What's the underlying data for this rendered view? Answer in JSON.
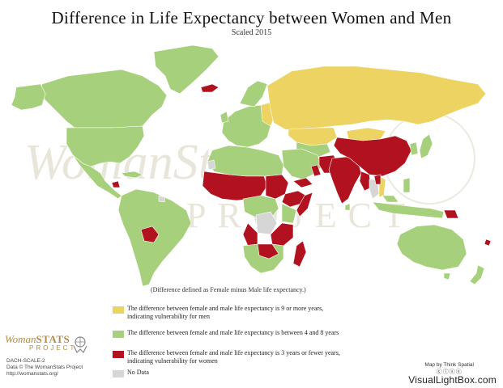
{
  "title": "Difference in Life Expectancy between Women and Men",
  "subtitle": "Scaled 2015",
  "note": "(Difference defined as Female minus Male life expectancy.)",
  "colors": {
    "high": "#ecd362",
    "mid": "#a6d07b",
    "low": "#b2121f",
    "nodata": "#d6d6d6",
    "ocean": "#ffffff",
    "border": "#ffffff"
  },
  "legend": [
    {
      "key": "high",
      "line1": "The difference between female and male life expectancy is 9 or more years,",
      "line2": "indicating vulnerability for men"
    },
    {
      "key": "mid",
      "line1": "The difference between female and male life expectancy is between 4 and 8 years",
      "line2": ""
    },
    {
      "key": "low",
      "line1": "The difference between female and male life expectancy is 3 years or fewer years,",
      "line2": "indicating vulnerability for women"
    },
    {
      "key": "nodata",
      "line1": "No Data",
      "line2": ""
    }
  ],
  "watermark": {
    "line1": "WomanStats",
    "line2": "PROJECT"
  },
  "logo": {
    "name_part1": "Woman",
    "name_part2": "STATS",
    "project": "PROJECT"
  },
  "credits": {
    "code": "DACH-SCALE-2",
    "data": "Data © The WomanStats Project",
    "url": "http://womanstats.org/"
  },
  "maker": {
    "label": "Map by Think Spatial",
    "license_glyphs": "ⓒⓘⓢⓔ"
  },
  "site": "VisualLightBox.com"
}
